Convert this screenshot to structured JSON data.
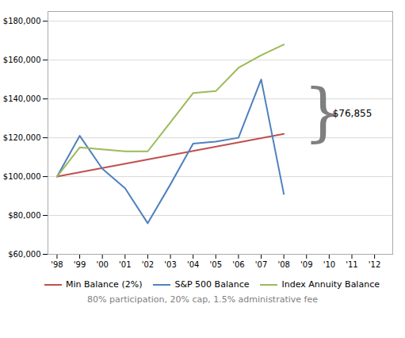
{
  "chart_data": {
    "type": "line",
    "subtitle": "80% participation, 20% cap, 1.5% administrative fee",
    "series": [
      {
        "name": "Min Balance (2%)",
        "color": "#c0504d",
        "x": [
          1998,
          2008
        ],
        "values": [
          100000,
          122000
        ]
      },
      {
        "name": "S&P 500 Balance",
        "color": "#4f81bd",
        "x": [
          1998,
          1999,
          2000,
          2001,
          2002,
          2003,
          2004,
          2005,
          2006,
          2007,
          2008
        ],
        "values": [
          100000,
          121000,
          104000,
          94000,
          76000,
          96000,
          117000,
          118000,
          120000,
          150000,
          91000
        ]
      },
      {
        "name": "Index Annuity Balance",
        "color": "#9bbb59",
        "x": [
          1998,
          1999,
          2000,
          2001,
          2002,
          2003,
          2004,
          2005,
          2006,
          2007,
          2008
        ],
        "values": [
          100000,
          115000,
          114000,
          113000,
          113000,
          128000,
          143000,
          144000,
          156000,
          162500,
          168000
        ]
      }
    ],
    "xlim": [
      1997.6,
      2012.8
    ],
    "xticks": [
      {
        "value": 1998,
        "label": "'98"
      },
      {
        "value": 1999,
        "label": "'99"
      },
      {
        "value": 2000,
        "label": "'00"
      },
      {
        "value": 2001,
        "label": "'01"
      },
      {
        "value": 2002,
        "label": "'02"
      },
      {
        "value": 2003,
        "label": "'03"
      },
      {
        "value": 2004,
        "label": "'04"
      },
      {
        "value": 2005,
        "label": "'05"
      },
      {
        "value": 2006,
        "label": "'06"
      },
      {
        "value": 2007,
        "label": "'07"
      },
      {
        "value": 2008,
        "label": "'08"
      },
      {
        "value": 2009,
        "label": "'09"
      },
      {
        "value": 2010,
        "label": "'10"
      },
      {
        "value": 2011,
        "label": "'11"
      },
      {
        "value": 2012,
        "label": "'12"
      }
    ],
    "ylim": [
      60000,
      185000
    ],
    "yticks": [
      {
        "value": 60000,
        "label": "$60,000"
      },
      {
        "value": 80000,
        "label": "$80,000"
      },
      {
        "value": 100000,
        "label": "$100,000"
      },
      {
        "value": 120000,
        "label": "$120,000"
      },
      {
        "value": 140000,
        "label": "$140,000"
      },
      {
        "value": 160000,
        "label": "$160,000"
      },
      {
        "value": 180000,
        "label": "$180,000"
      }
    ],
    "grid": true,
    "legend": "bottom",
    "annotations": [
      {
        "text": "}",
        "x": 2008.85,
        "y": 132500
      },
      {
        "text": "$76,855",
        "x": 2010.15,
        "y": 132500
      }
    ]
  }
}
